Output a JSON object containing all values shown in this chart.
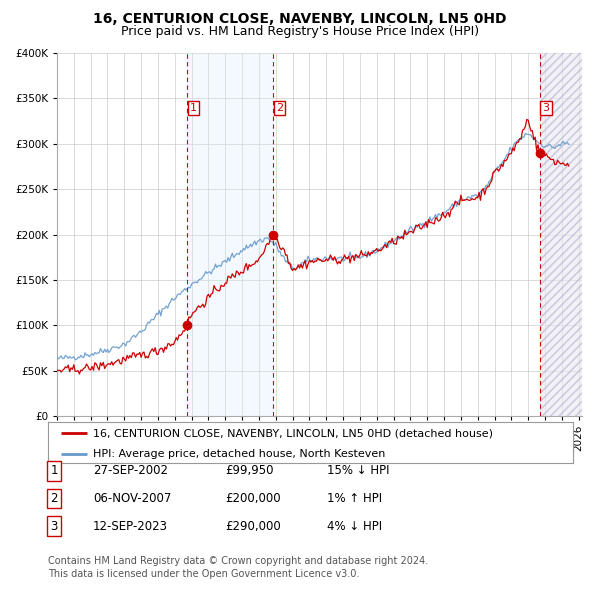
{
  "title": "16, CENTURION CLOSE, NAVENBY, LINCOLN, LN5 0HD",
  "subtitle": "Price paid vs. HM Land Registry's House Price Index (HPI)",
  "ylim": [
    0,
    400000
  ],
  "yticks": [
    0,
    50000,
    100000,
    150000,
    200000,
    250000,
    300000,
    350000,
    400000
  ],
  "ytick_labels": [
    "£0",
    "£50K",
    "£100K",
    "£150K",
    "£200K",
    "£250K",
    "£300K",
    "£350K",
    "£400K"
  ],
  "xlim_start": 1995.0,
  "xlim_end": 2026.2,
  "sale_decimal": [
    2002.74,
    2007.85,
    2023.7
  ],
  "sale_prices": [
    99950,
    200000,
    290000
  ],
  "sale_labels": [
    "1",
    "2",
    "3"
  ],
  "transaction_info": [
    {
      "label": "1",
      "date": "27-SEP-2002",
      "price": "£99,950",
      "hpi": "15% ↓ HPI"
    },
    {
      "label": "2",
      "date": "06-NOV-2007",
      "price": "£200,000",
      "hpi": "1% ↑ HPI"
    },
    {
      "label": "3",
      "date": "12-SEP-2023",
      "price": "£290,000",
      "hpi": "4% ↓ HPI"
    }
  ],
  "legend_line1": "16, CENTURION CLOSE, NAVENBY, LINCOLN, LN5 0HD (detached house)",
  "legend_line2": "HPI: Average price, detached house, North Kesteven",
  "footer1": "Contains HM Land Registry data © Crown copyright and database right 2024.",
  "footer2": "This data is licensed under the Open Government Licence v3.0.",
  "price_line_color": "#cc0000",
  "hpi_line_color": "#6699cc",
  "dot_color": "#cc0000",
  "dashed_line_color": "#cc0000",
  "shade_color": "#ddeeff",
  "hatch_color": "#bbbbdd",
  "background_color": "#ffffff",
  "grid_color": "#cccccc",
  "title_fontsize": 10,
  "subtitle_fontsize": 9,
  "tick_fontsize": 7.5,
  "legend_fontsize": 8,
  "table_fontsize": 8.5,
  "footer_fontsize": 7
}
